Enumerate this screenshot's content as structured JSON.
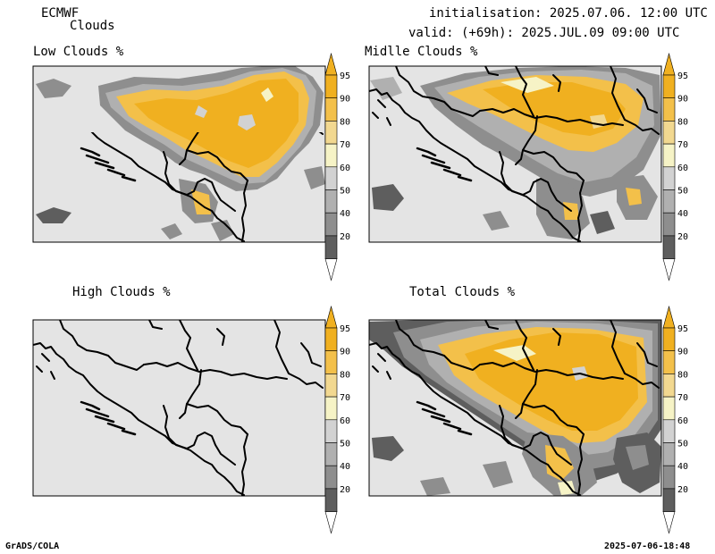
{
  "header": {
    "model": "ECMWF",
    "product": "Clouds",
    "init": "initialisation: 2025.07.06. 12:00 UTC",
    "valid": "valid: (+69h): 2025.JUL.09 09:00 UTC"
  },
  "panels": [
    {
      "title": "Low Clouds %"
    },
    {
      "title": "Midlle Clouds %"
    },
    {
      "title": "High Clouds %"
    },
    {
      "title": "Total Clouds %"
    }
  ],
  "colorbar": {
    "labels": [
      "95",
      "90",
      "80",
      "70",
      "60",
      "50",
      "40",
      "20"
    ],
    "colors": {
      "c95": "#f0b020",
      "c90": "#f3c04a",
      "c80": "#f2d890",
      "c70": "#f6f3c6",
      "c60": "#d2d2d2",
      "c50": "#b0b0b0",
      "c40": "#8e8e8e",
      "c20": "#5e5e5e",
      "under": "#ffffff",
      "background": "#e4e4e4"
    }
  },
  "footer": {
    "left": "GrADS/COLA",
    "right": "2025-07-06-18:48"
  }
}
